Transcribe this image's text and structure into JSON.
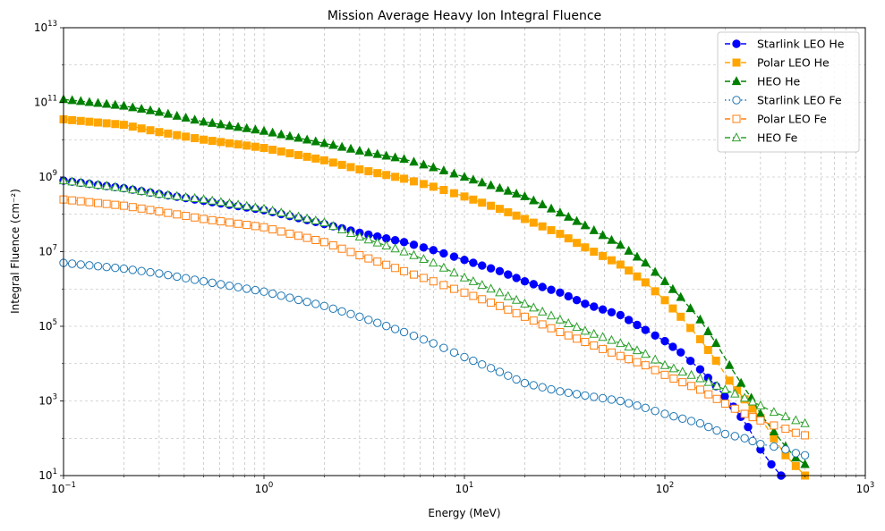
{
  "chart_data": {
    "type": "line",
    "title": "Mission Average Heavy Ion Integral Fluence",
    "xlabel": "Energy (MeV)",
    "ylabel": "Integral Fluence (cm⁻²)",
    "x_scale": "log",
    "y_scale": "log",
    "xlim": [
      0.1,
      1000
    ],
    "ylim": [
      10,
      10000000000000.0
    ],
    "x_ticks": [
      {
        "value": 0.1,
        "base": "10",
        "exp": "−1"
      },
      {
        "value": 1,
        "base": "10",
        "exp": "0"
      },
      {
        "value": 10,
        "base": "10",
        "exp": "1"
      },
      {
        "value": 100,
        "base": "10",
        "exp": "2"
      },
      {
        "value": 1000,
        "base": "10",
        "exp": "3"
      }
    ],
    "y_ticks": [
      {
        "value": 10,
        "base": "10",
        "exp": "1"
      },
      {
        "value": 1000,
        "base": "10",
        "exp": "3"
      },
      {
        "value": 100000,
        "base": "10",
        "exp": "5"
      },
      {
        "value": 10000000,
        "base": "10",
        "exp": "7"
      },
      {
        "value": 1000000000,
        "base": "10",
        "exp": "9"
      },
      {
        "value": 100000000000,
        "base": "10",
        "exp": "11"
      },
      {
        "value": 10000000000000,
        "base": "10",
        "exp": "13"
      }
    ],
    "grid": true,
    "legend_position": "top-right",
    "series": [
      {
        "name": "Starlink LEO He",
        "color": "#0000ff",
        "marker": "circle",
        "filled": true,
        "linestyle": "dashed",
        "points": [
          [
            0.1,
            800000000.0
          ],
          [
            0.2,
            500000000.0
          ],
          [
            0.3,
            350000000.0
          ],
          [
            0.5,
            230000000.0
          ],
          [
            1,
            130000000.0
          ],
          [
            2,
            55000000.0
          ],
          [
            3,
            32000000.0
          ],
          [
            5,
            18000000.0
          ],
          [
            7,
            11000000.0
          ],
          [
            10,
            6000000.0
          ],
          [
            15,
            3000000.0
          ],
          [
            20,
            1600000.0
          ],
          [
            30,
            800000.0
          ],
          [
            40,
            400000.0
          ],
          [
            60,
            200000.0
          ],
          [
            80,
            80000.0
          ],
          [
            100,
            40000.0
          ],
          [
            120,
            20000.0
          ],
          [
            150,
            7000.0
          ],
          [
            180,
            2500.0
          ],
          [
            220,
            700.0
          ],
          [
            260,
            200.0
          ],
          [
            300,
            50.0
          ],
          [
            340,
            20.0
          ],
          [
            380,
            10.0
          ]
        ]
      },
      {
        "name": "Polar LEO He",
        "color": "#ffa500",
        "marker": "square",
        "filled": true,
        "linestyle": "dashed",
        "points": [
          [
            0.1,
            35000000000.0
          ],
          [
            0.2,
            25000000000.0
          ],
          [
            0.3,
            16000000000.0
          ],
          [
            0.5,
            10000000000.0
          ],
          [
            1,
            6000000000.0
          ],
          [
            2,
            2800000000.0
          ],
          [
            3,
            1600000000.0
          ],
          [
            5,
            900000000.0
          ],
          [
            7,
            550000000.0
          ],
          [
            10,
            300000000.0
          ],
          [
            15,
            140000000.0
          ],
          [
            20,
            75000000.0
          ],
          [
            30,
            30000000.0
          ],
          [
            40,
            13000000.0
          ],
          [
            60,
            4500000.0
          ],
          [
            80,
            1500000.0
          ],
          [
            100,
            500000.0
          ],
          [
            120,
            180000.0
          ],
          [
            150,
            45000.0
          ],
          [
            180,
            12000.0
          ],
          [
            210,
            3500.0
          ],
          [
            250,
            1100.0
          ],
          [
            300,
            350.0
          ],
          [
            350,
            100.0
          ],
          [
            400,
            35.0
          ],
          [
            450,
            18.0
          ],
          [
            500,
            10.0
          ]
        ]
      },
      {
        "name": "HEO He",
        "color": "#008000",
        "marker": "triangle",
        "filled": true,
        "linestyle": "dashed",
        "points": [
          [
            0.1,
            120000000000.0
          ],
          [
            0.2,
            80000000000.0
          ],
          [
            0.3,
            55000000000.0
          ],
          [
            0.5,
            30000000000.0
          ],
          [
            1,
            17000000000.0
          ],
          [
            2,
            8000000000.0
          ],
          [
            3,
            5000000000.0
          ],
          [
            5,
            3000000000.0
          ],
          [
            7,
            1800000000.0
          ],
          [
            10,
            1000000000.0
          ],
          [
            15,
            500000000.0
          ],
          [
            20,
            300000000.0
          ],
          [
            30,
            110000000.0
          ],
          [
            40,
            50000000.0
          ],
          [
            60,
            15000000.0
          ],
          [
            80,
            5000000.0
          ],
          [
            100,
            1600000.0
          ],
          [
            120,
            600000.0
          ],
          [
            150,
            150000.0
          ],
          [
            180,
            35000.0
          ],
          [
            210,
            9000.0
          ],
          [
            240,
            3000.0
          ],
          [
            270,
            1200.0
          ],
          [
            300,
            450.0
          ],
          [
            350,
            150.0
          ],
          [
            400,
            60.0
          ],
          [
            450,
            30.0
          ],
          [
            500,
            20.0
          ]
        ]
      },
      {
        "name": "Starlink LEO Fe",
        "color": "#1f77b4",
        "marker": "circle",
        "filled": false,
        "linestyle": "dotted",
        "points": [
          [
            0.1,
            5000000.0
          ],
          [
            0.2,
            3500000.0
          ],
          [
            0.3,
            2600000.0
          ],
          [
            0.5,
            1600000.0
          ],
          [
            1,
            850000.0
          ],
          [
            2,
            350000.0
          ],
          [
            3,
            180000.0
          ],
          [
            5,
            70000.0
          ],
          [
            7,
            35000.0
          ],
          [
            10,
            15000.0
          ],
          [
            15,
            6000.0
          ],
          [
            20,
            3000.0
          ],
          [
            30,
            1800.0
          ],
          [
            40,
            1400.0
          ],
          [
            60,
            1000.0
          ],
          [
            80,
            650.0
          ],
          [
            100,
            450.0
          ],
          [
            150,
            250.0
          ],
          [
            200,
            130.0
          ],
          [
            250,
            100.0
          ],
          [
            300,
            70.0
          ],
          [
            350,
            60.0
          ],
          [
            400,
            50.0
          ],
          [
            450,
            40.0
          ],
          [
            500,
            35.0
          ]
        ]
      },
      {
        "name": "Polar LEO Fe",
        "color": "#ff7f0e",
        "marker": "square",
        "filled": false,
        "linestyle": "dashed",
        "points": [
          [
            0.1,
            250000000.0
          ],
          [
            0.2,
            170000000.0
          ],
          [
            0.3,
            120000000.0
          ],
          [
            0.5,
            75000000.0
          ],
          [
            1,
            45000000.0
          ],
          [
            2,
            18000000.0
          ],
          [
            3,
            8000000.0
          ],
          [
            5,
            3000000.0
          ],
          [
            7,
            1600000.0
          ],
          [
            10,
            800000.0
          ],
          [
            15,
            350000.0
          ],
          [
            20,
            180000.0
          ],
          [
            30,
            70000.0
          ],
          [
            40,
            38000.0
          ],
          [
            60,
            16000.0
          ],
          [
            80,
            9000.0
          ],
          [
            100,
            5000.0
          ],
          [
            150,
            2000.0
          ],
          [
            200,
            850.0
          ],
          [
            250,
            450.0
          ],
          [
            300,
            300.0
          ],
          [
            350,
            220.0
          ],
          [
            400,
            180.0
          ],
          [
            450,
            140.0
          ],
          [
            500,
            120.0
          ]
        ]
      },
      {
        "name": "HEO Fe",
        "color": "#2ca02c",
        "marker": "triangle",
        "filled": false,
        "linestyle": "dashed",
        "points": [
          [
            0.1,
            800000000.0
          ],
          [
            0.2,
            500000000.0
          ],
          [
            0.3,
            350000000.0
          ],
          [
            0.5,
            250000000.0
          ],
          [
            1,
            140000000.0
          ],
          [
            2,
            60000000.0
          ],
          [
            3,
            25000000.0
          ],
          [
            5,
            10000000.0
          ],
          [
            7,
            5000000.0
          ],
          [
            10,
            2000000.0
          ],
          [
            15,
            800000.0
          ],
          [
            20,
            400000.0
          ],
          [
            30,
            150000.0
          ],
          [
            40,
            75000.0
          ],
          [
            60,
            35000.0
          ],
          [
            80,
            18000.0
          ],
          [
            100,
            9000.0
          ],
          [
            150,
            4000.0
          ],
          [
            200,
            2000.0
          ],
          [
            250,
            1200.0
          ],
          [
            300,
            750.0
          ],
          [
            350,
            500.0
          ],
          [
            400,
            380.0
          ],
          [
            450,
            300.0
          ],
          [
            500,
            250.0
          ]
        ]
      }
    ]
  }
}
